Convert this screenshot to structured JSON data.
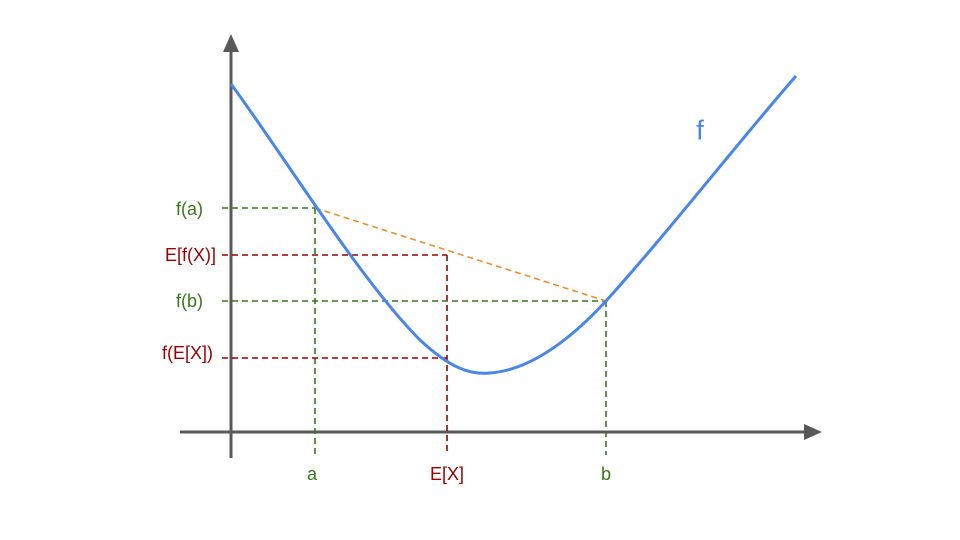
{
  "diagram": {
    "curve_label": "f",
    "y_labels": {
      "fa": "f(a)",
      "efx": "E[f(X)]",
      "fb": "f(b)",
      "fex": "f(E[X])"
    },
    "x_labels": {
      "a": "a",
      "ex": "E[X]",
      "b": "b"
    }
  }
}
